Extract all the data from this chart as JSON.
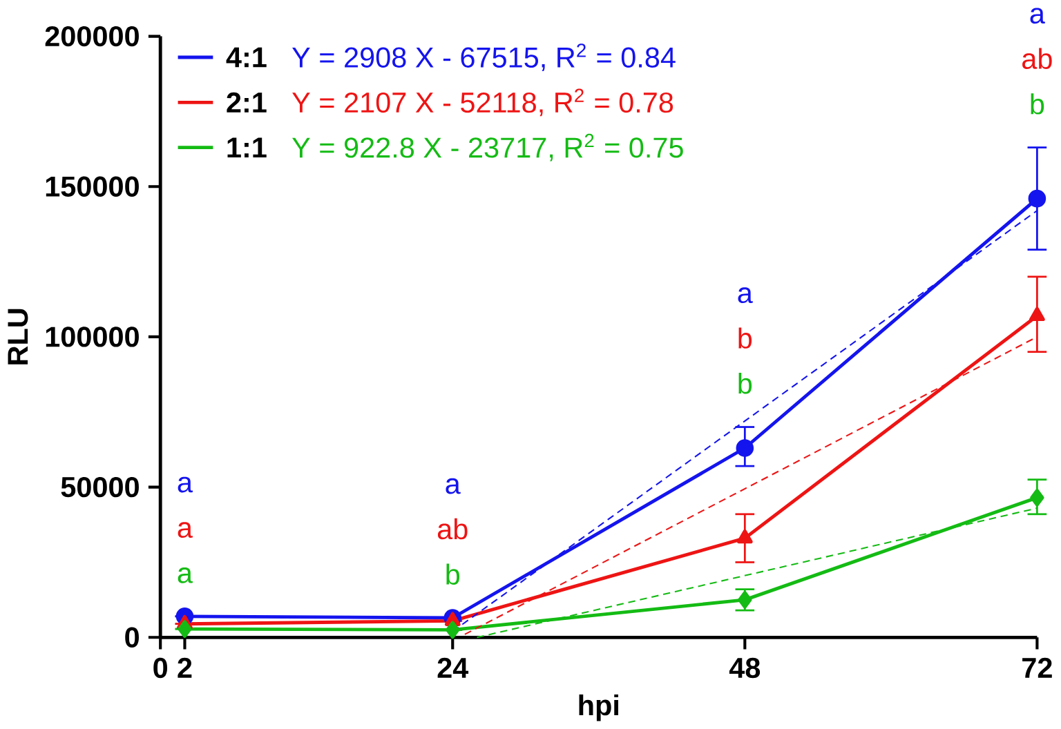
{
  "chart_data": {
    "type": "line",
    "xlabel": "hpi",
    "ylabel": "RLU",
    "xlim": [
      0,
      72
    ],
    "ylim": [
      0,
      200000
    ],
    "xticks": [
      0,
      2,
      24,
      48,
      72
    ],
    "yticks": [
      0,
      50000,
      100000,
      150000,
      200000
    ],
    "grid": false,
    "legend": "top left",
    "x": [
      2,
      24,
      48,
      72
    ],
    "series": [
      {
        "name": "4:1",
        "color": "#1414ee",
        "marker": "circle",
        "values": [
          7000,
          6500,
          63000,
          146000
        ],
        "errors": [
          null,
          null,
          [
            57000,
            70000
          ],
          [
            129000,
            163000
          ]
        ]
      },
      {
        "name": "2:1",
        "color": "#ee1414",
        "marker": "triangle",
        "values": [
          4500,
          5500,
          33000,
          107000
        ],
        "errors": [
          null,
          null,
          [
            25000,
            41000
          ],
          [
            95000,
            120000
          ]
        ]
      },
      {
        "name": "1:1",
        "color": "#14bb14",
        "marker": "diamond",
        "values": [
          2800,
          2500,
          12500,
          46500
        ],
        "errors": [
          null,
          null,
          [
            9000,
            16000
          ],
          [
            41000,
            52500
          ]
        ]
      },
      {
        "type": "line",
        "line_style": "dashed",
        "marker": "none",
        "color": "#1414ee",
        "x": [
          24,
          72
        ],
        "values": [
          2000,
          142000
        ]
      },
      {
        "type": "line",
        "line_style": "dashed",
        "marker": "none",
        "color": "#ee1414",
        "x": [
          25,
          72
        ],
        "values": [
          1000,
          100000
        ]
      },
      {
        "type": "line",
        "line_style": "dashed",
        "marker": "none",
        "color": "#14bb14",
        "x": [
          26,
          72
        ],
        "values": [
          0,
          43000
        ]
      }
    ],
    "annotations": [
      "Y = 2908 X - 67515, R$^{2}$ = 0.84",
      "Y = 2107 X - 52118, R$^{2}$ = 0.78",
      "Y = 922.8 X - 23717, R$^{2}$ = 0.75",
      "a",
      "a",
      "a",
      "a",
      "ab",
      "b",
      "a",
      "b",
      "b",
      "a",
      "ab",
      "b"
    ]
  }
}
